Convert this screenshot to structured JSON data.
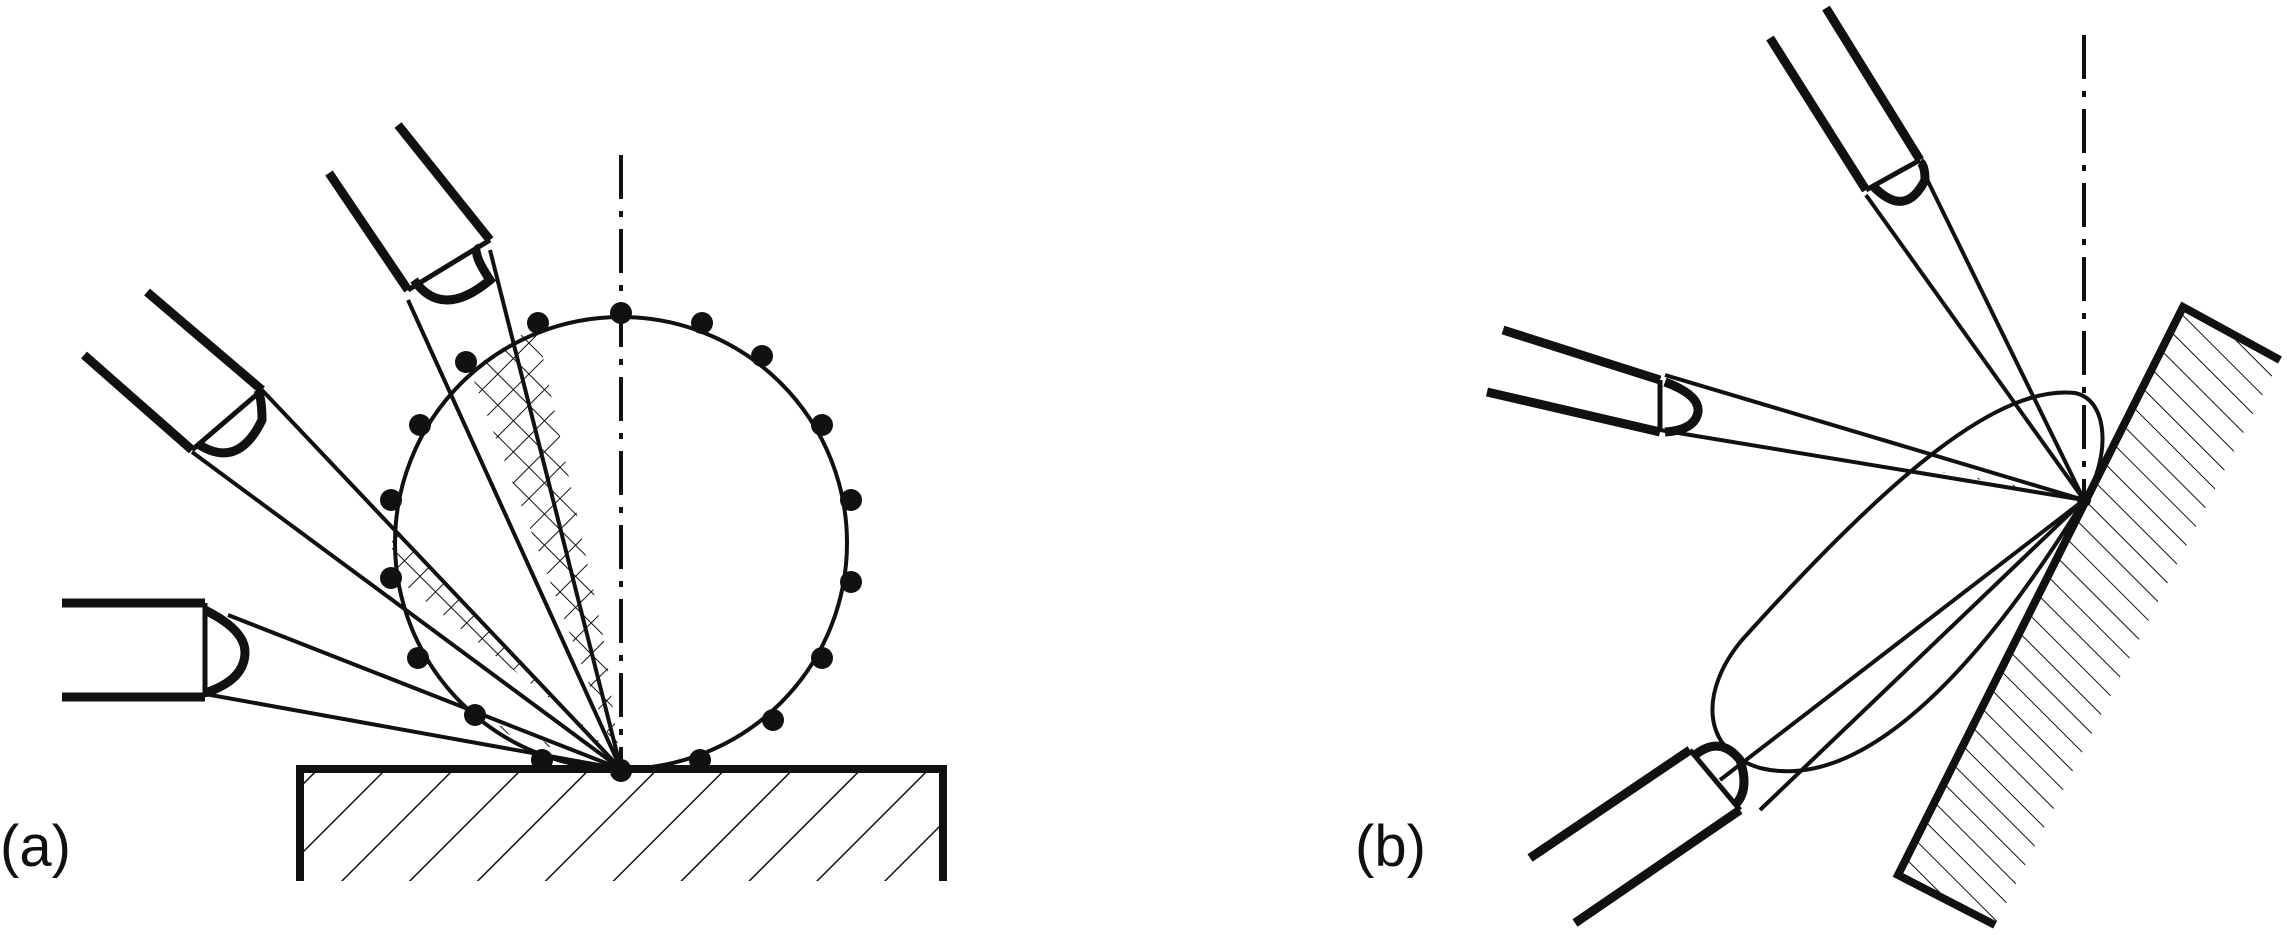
{
  "panels": {
    "a": {
      "label": "(a)"
    },
    "b": {
      "label": "(b)"
    }
  },
  "colors": {
    "ink": "#111111",
    "background": "#ffffff"
  },
  "icons": [
    "detector-icon",
    "specimen-block-icon",
    "scattering-circle-icon",
    "scattering-lobe-icon"
  ]
}
